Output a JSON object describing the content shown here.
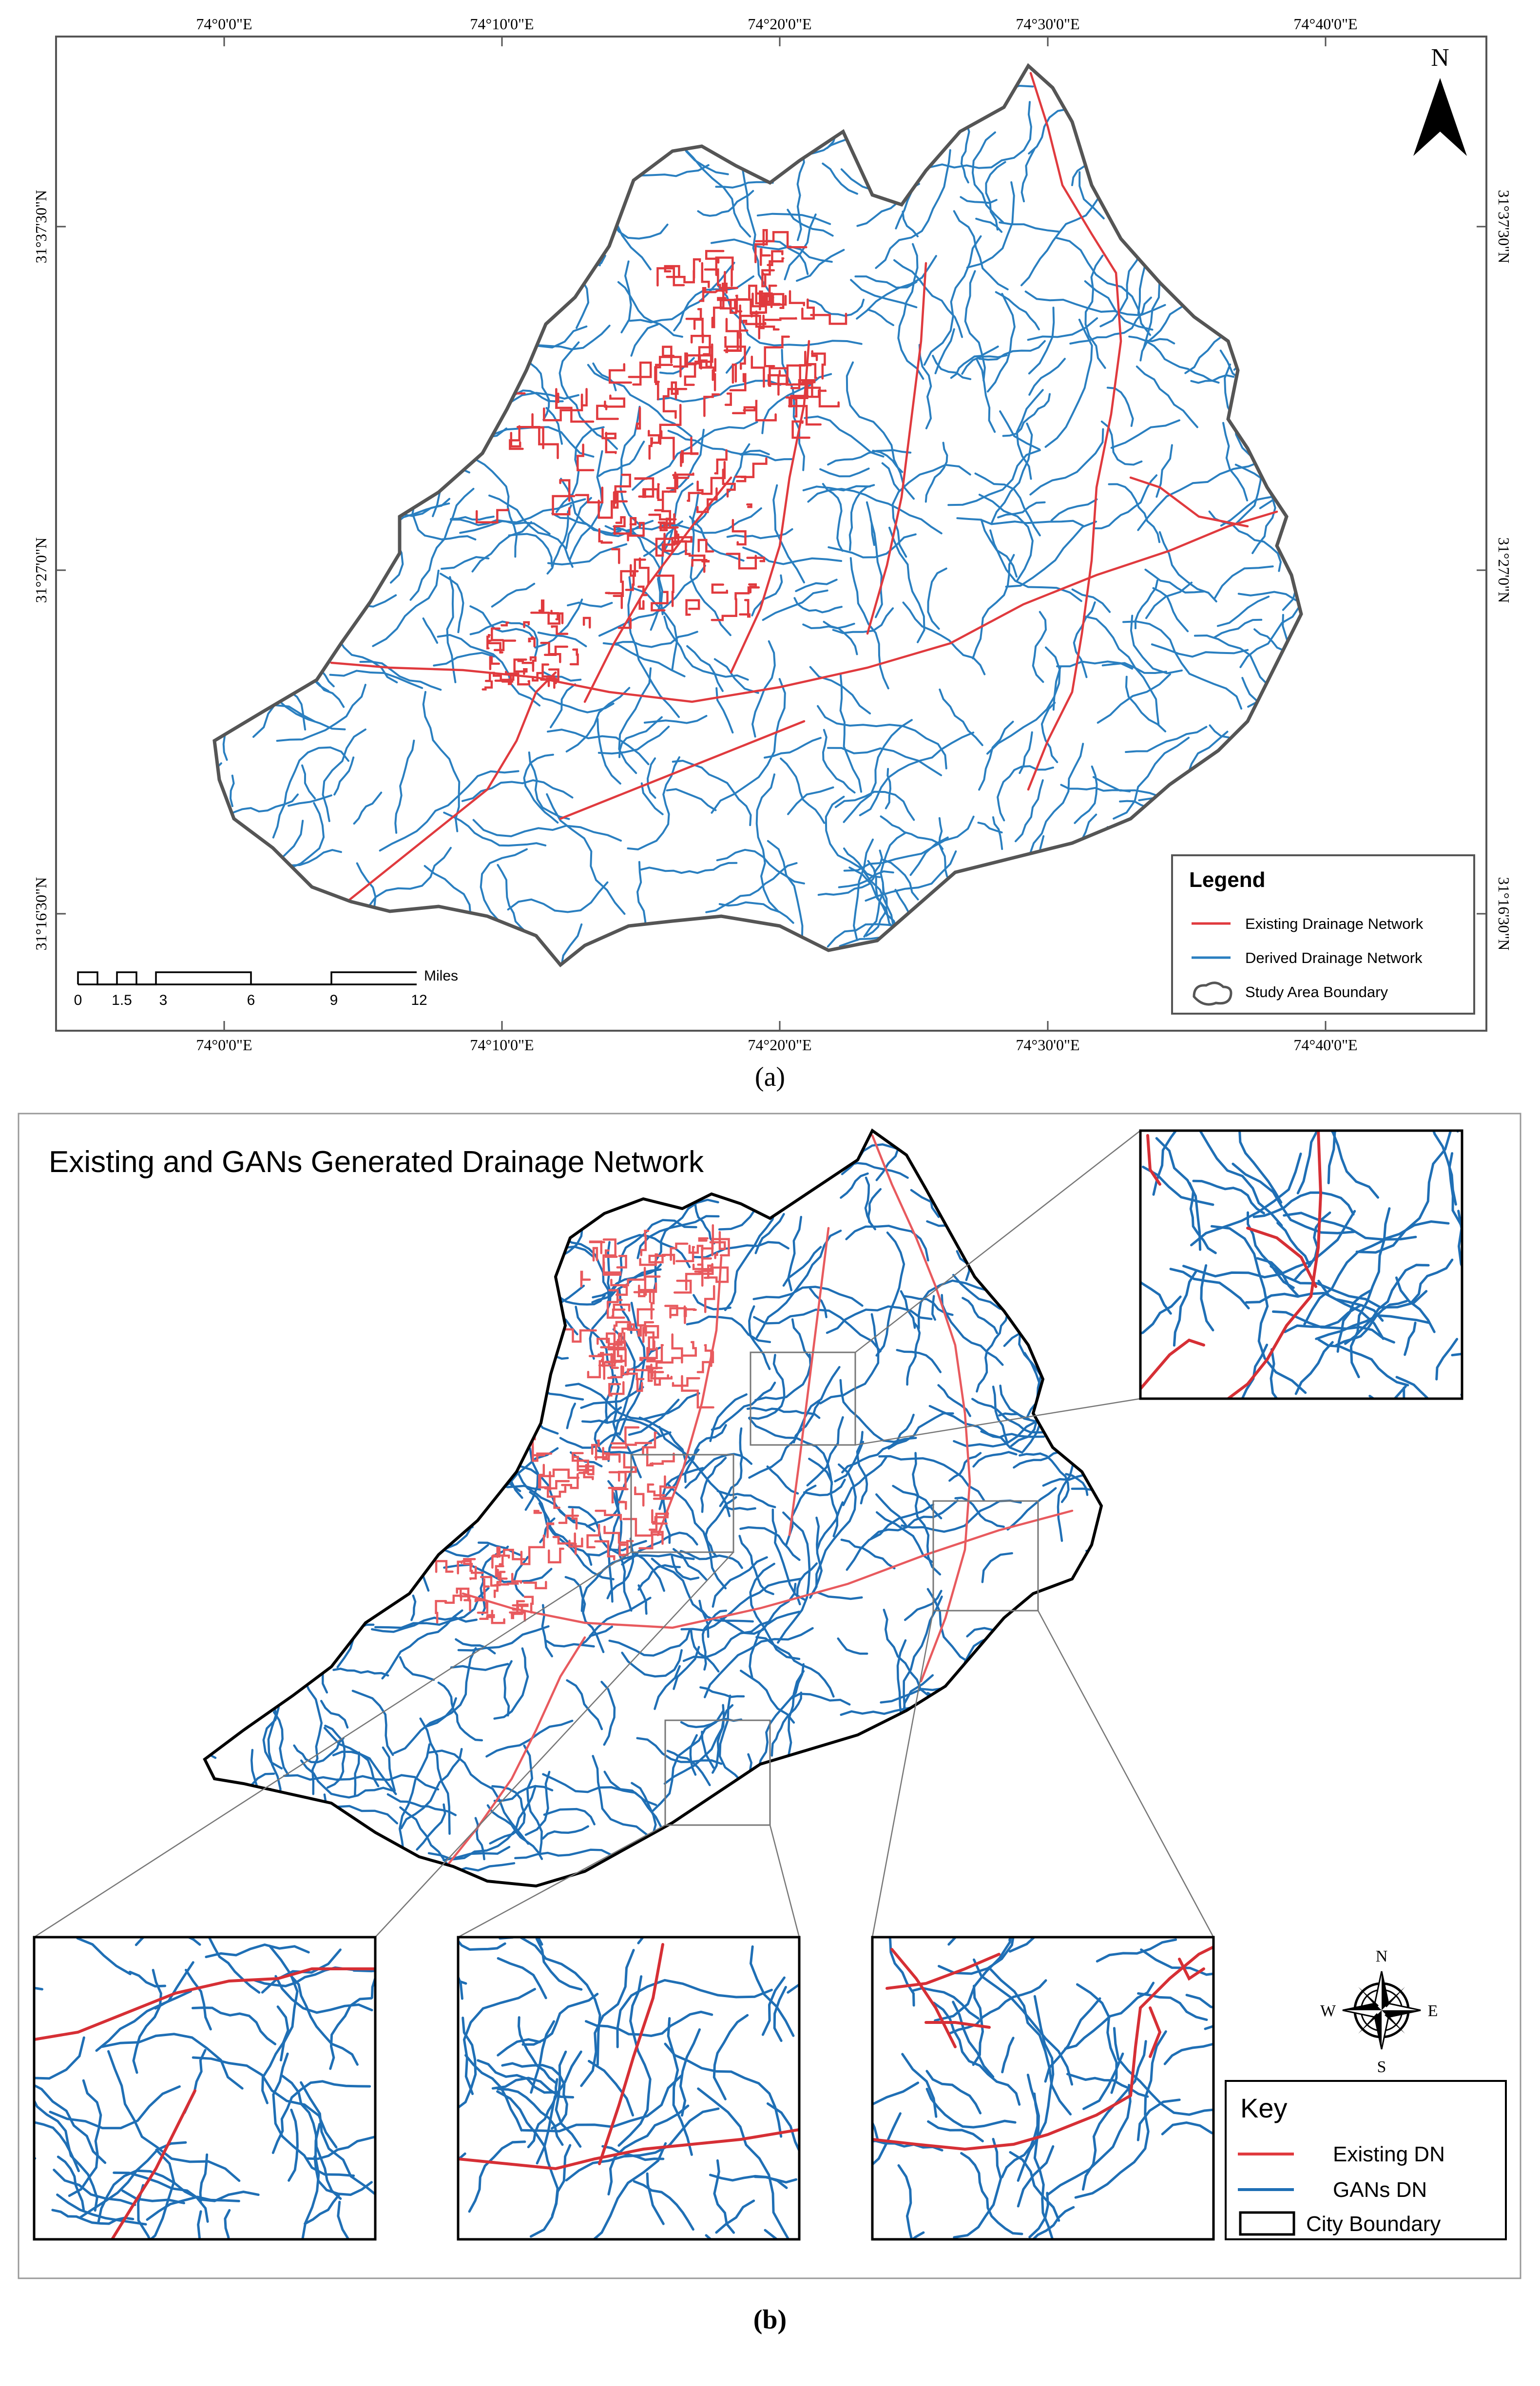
{
  "panel_a": {
    "caption": "(a)",
    "top_lon_ticks": [
      "74°0'0\"E",
      "74°10'0\"E",
      "74°20'0\"E",
      "74°30'0\"E",
      "74°40'0\"E"
    ],
    "bottom_lon_ticks": [
      "74°0'0\"E",
      "74°10'0\"E",
      "74°20'0\"E",
      "74°30'0\"E",
      "74°40'0\"E"
    ],
    "left_lat_ticks": [
      "31°37'30\"N",
      "31°27'0\"N",
      "31°16'30\"N"
    ],
    "right_lat_ticks": [
      "31°37'30\"N",
      "31°27'0\"N",
      "31°16'30\"N"
    ],
    "north_label": "N",
    "legend": {
      "title": "Legend",
      "items": [
        {
          "label": "Existing Drainage Network",
          "color": "#e03a3e",
          "symbol": "line"
        },
        {
          "label": "Derived Drainage Network",
          "color": "#2a7fc0",
          "symbol": "line"
        },
        {
          "label": "Study Area Boundary",
          "color": "#555555",
          "symbol": "polygon"
        }
      ]
    },
    "scalebar": {
      "unit": "Miles",
      "ticks": [
        "0",
        "1.5",
        "3",
        "6",
        "9",
        "12"
      ]
    }
  },
  "panel_b": {
    "caption": "(b)",
    "title": "Existing and GANs Generated Drainage Network",
    "compass": {
      "n": "N",
      "s": "S",
      "e": "E",
      "w": "W"
    },
    "key": {
      "title": "Key",
      "items": [
        {
          "label": "Existing DN",
          "color": "#e03a3e",
          "symbol": "line"
        },
        {
          "label": "GANs DN",
          "color": "#1f6fb5",
          "symbol": "line"
        },
        {
          "label": "City Boundary",
          "color": "#000000",
          "symbol": "box"
        }
      ]
    }
  },
  "colors": {
    "existing": "#e03a3e",
    "derived": "#2a7fc0",
    "gans": "#1f6fb5",
    "boundary_a": "#555555",
    "boundary_b": "#000000"
  }
}
